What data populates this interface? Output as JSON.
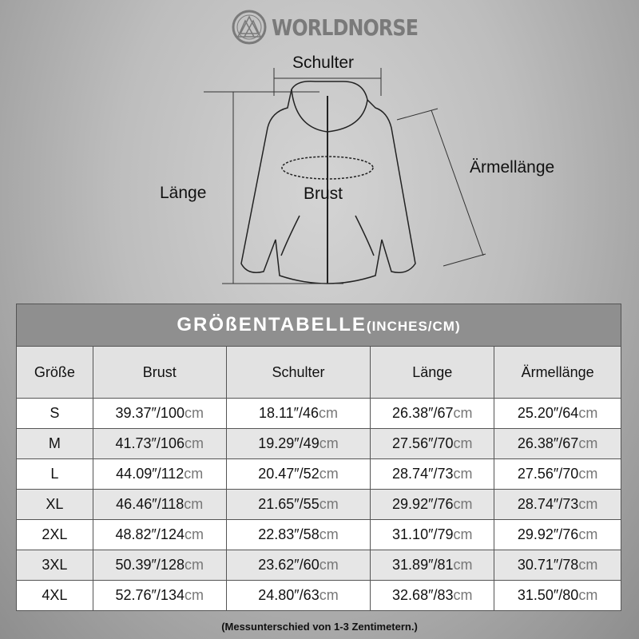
{
  "brand": "WORLDNORSE",
  "diagram": {
    "shoulder": "Schulter",
    "length": "Länge",
    "chest": "Brust",
    "sleeve": "Ärmellänge"
  },
  "table": {
    "title": "GRÖßENTABELLE",
    "title_unit": "(INCHES/CM)",
    "headers": [
      "Größe",
      "Brust",
      "Schulter",
      "Länge",
      "Ärmellänge"
    ],
    "rows": [
      [
        "S",
        "39.37″/100",
        "18.11″/46",
        "26.38″/67",
        "25.20″/64"
      ],
      [
        "M",
        "41.73″/106",
        "19.29″/49",
        "27.56″/70",
        "26.38″/67"
      ],
      [
        "L",
        "44.09″/112",
        "20.47″/52",
        "28.74″/73",
        "27.56″/70"
      ],
      [
        "XL",
        "46.46″/118",
        "21.65″/55",
        "29.92″/76",
        "28.74″/73"
      ],
      [
        "2XL",
        "48.82″/124",
        "22.83″/58",
        "31.10″/79",
        "29.92″/76"
      ],
      [
        "3XL",
        "50.39″/128",
        "23.62″/60",
        "31.89″/81",
        "30.71″/78"
      ],
      [
        "4XL",
        "52.76″/134",
        "24.80″/63",
        "32.68″/83",
        "31.50″/80"
      ]
    ],
    "unit": "cm"
  },
  "note": "(Messunterschied von 1-3 Zentimetern.)",
  "colors": {
    "header_bg": "#8f8f8f",
    "subheader_bg": "#e2e2e2",
    "logo": "#7a7a7a"
  }
}
